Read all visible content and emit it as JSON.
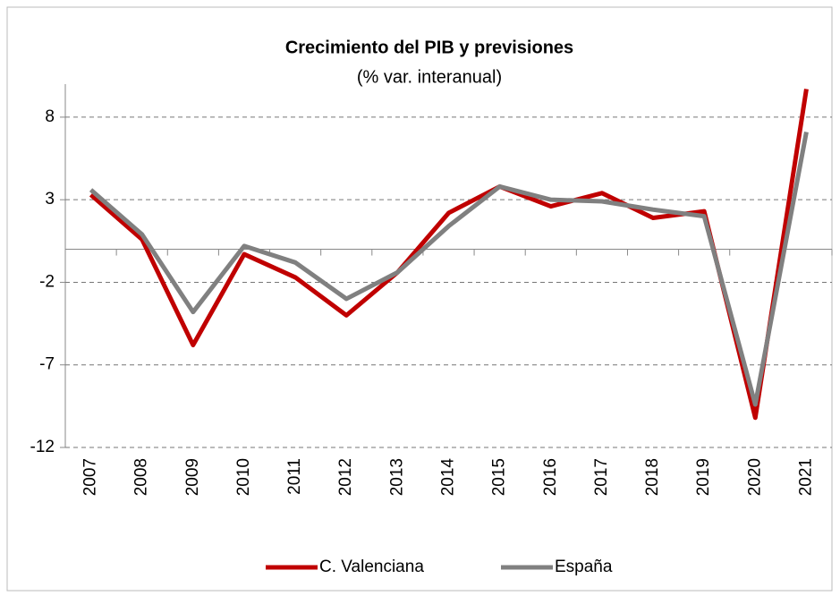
{
  "chart_data": {
    "type": "line",
    "title": "Crecimiento del PIB y previsiones",
    "subtitle": "(% var. interanual)",
    "categories": [
      "2007",
      "2008",
      "2009",
      "2010",
      "2011",
      "2012",
      "2013",
      "2014",
      "2015",
      "2016",
      "2017",
      "2018",
      "2019",
      "2020",
      "2021"
    ],
    "series": [
      {
        "name": "C. Valenciana",
        "color": "#c00000",
        "values": [
          3.3,
          0.6,
          -5.8,
          -0.3,
          -1.7,
          -4.0,
          -1.4,
          2.2,
          3.8,
          2.6,
          3.4,
          1.9,
          2.3,
          -10.2,
          9.7
        ]
      },
      {
        "name": "España",
        "color": "#808080",
        "values": [
          3.6,
          0.9,
          -3.8,
          0.2,
          -0.8,
          -3.0,
          -1.4,
          1.4,
          3.8,
          3.0,
          2.9,
          2.4,
          2.0,
          -9.4,
          7.1
        ]
      }
    ],
    "ylim": [
      -12,
      10
    ],
    "yticks": [
      -12,
      -7,
      -2,
      3,
      8
    ],
    "grid": true,
    "legend": "bottom"
  }
}
